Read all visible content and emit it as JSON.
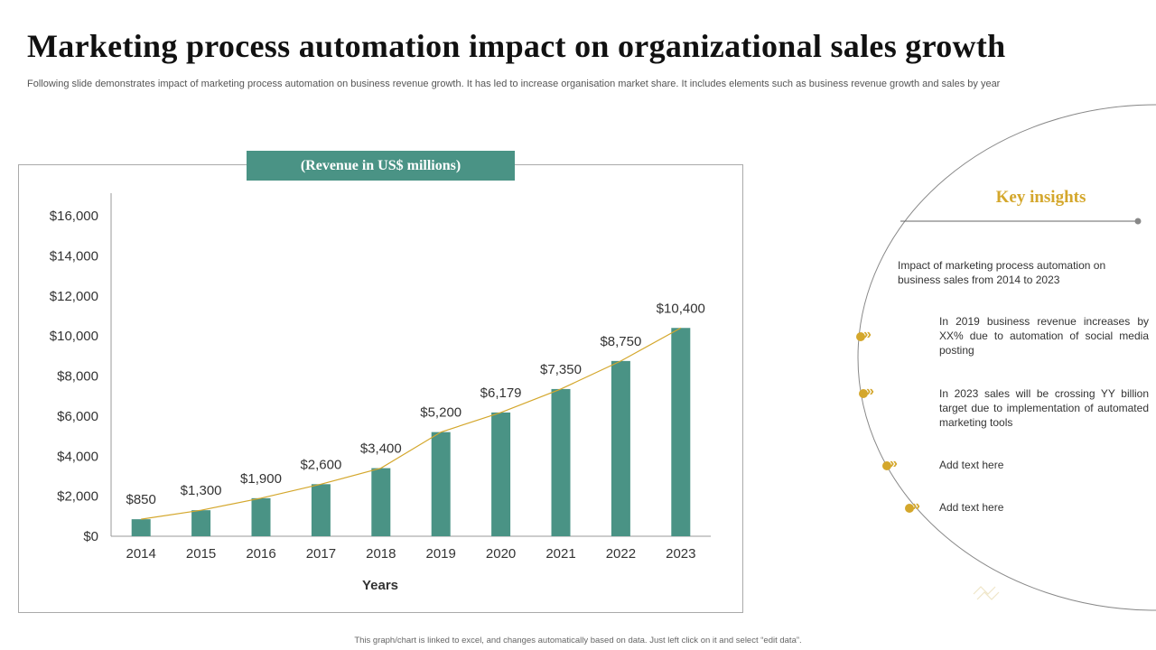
{
  "header": {
    "title": "Marketing process automation impact on organizational sales growth",
    "subtitle": "Following slide demonstrates impact of marketing process automation on business revenue growth. It has led to increase organisation market share. It includes elements such as business revenue growth and sales by year"
  },
  "chart_label": "(Revenue in US$ millions)",
  "chart_data": {
    "type": "bar",
    "title": "(Revenue in US$ millions)",
    "xlabel": "Years",
    "ylabel": "",
    "categories": [
      "2014",
      "2015",
      "2016",
      "2017",
      "2018",
      "2019",
      "2020",
      "2021",
      "2022",
      "2023"
    ],
    "values": [
      850,
      1300,
      1900,
      2600,
      3400,
      5200,
      6179,
      7350,
      8750,
      10400
    ],
    "data_labels": [
      "$850",
      "$1,300",
      "$1,900",
      "$2,600",
      "$3,400",
      "$5,200",
      "$6,179",
      "$7,350",
      "$8,750",
      "$10,400"
    ],
    "ylim": [
      0,
      16000
    ],
    "yticks": [
      0,
      2000,
      4000,
      6000,
      8000,
      10000,
      12000,
      14000,
      16000
    ],
    "ytick_labels": [
      "$0",
      "$2,000",
      "$4,000",
      "$6,000",
      "$8,000",
      "$10,000",
      "$12,000",
      "$14,000",
      "$16,000"
    ],
    "trendline": true,
    "grid": false,
    "colors": {
      "bar": "#4a9385",
      "trend": "#d4a72c"
    }
  },
  "insights": {
    "title": "Key insights",
    "intro": "Impact of marketing process automation on business sales from 2014 to 2023",
    "items": [
      "In 2019 business revenue increases by XX% due to automation of social media posting",
      "In 2023 sales will be crossing YY billion target due to implementation of automated marketing tools",
      "Add text here",
      "Add text here"
    ],
    "marker_icon": "double-chevron-right-icon"
  },
  "footer": "This graph/chart is linked to excel, and changes automatically based on data. Just left click on it and select “edit data”.",
  "colors": {
    "accent": "#4a9385",
    "gold": "#d4a72c"
  }
}
